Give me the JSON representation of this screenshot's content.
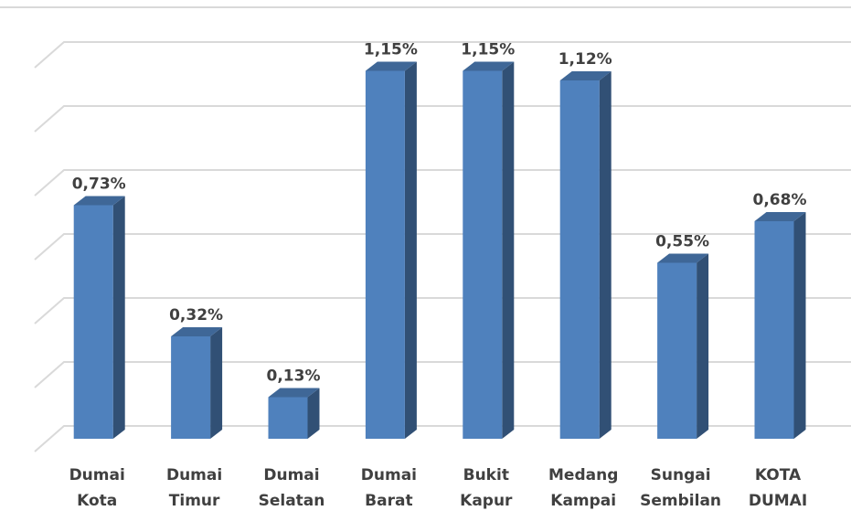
{
  "chart_data": {
    "type": "bar",
    "categories": [
      "Dumai Kota",
      "Dumai Timur",
      "Dumai Selatan",
      "Dumai Barat",
      "Bukit Kapur",
      "Medang Kampai",
      "Sungai Sembilan",
      "KOTA DUMAI"
    ],
    "values": [
      0.73,
      0.32,
      0.13,
      1.15,
      1.15,
      1.12,
      0.55,
      0.68
    ],
    "value_labels": [
      "0,73%",
      "0,32%",
      "0,13%",
      "1,15%",
      "1,15%",
      "1,12%",
      "0,55%",
      "0,68%"
    ],
    "color": "#4f81bd",
    "ylim": [
      0,
      1.2
    ],
    "yticks": [
      0,
      0.2,
      0.4,
      0.6,
      0.8,
      1.0,
      1.2
    ],
    "grid": true
  }
}
